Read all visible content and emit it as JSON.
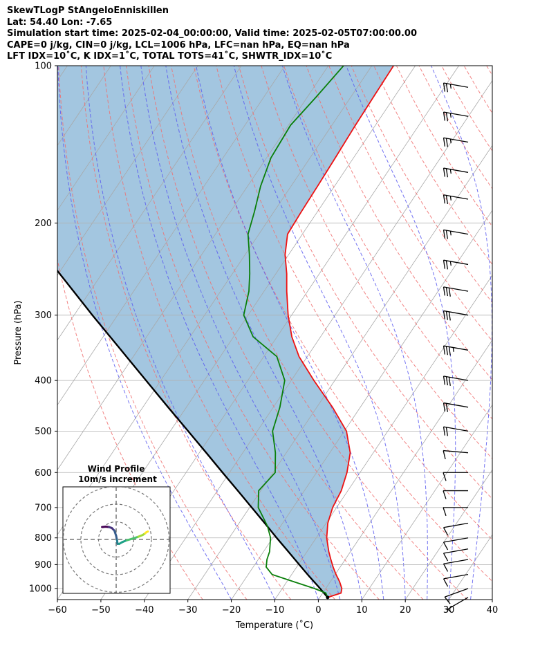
{
  "header": {
    "line1": "SkewTLogP StAngeloEnniskillen",
    "line2": "Lat: 54.40   Lon: -7.65",
    "line3": "Simulation start time: 2025-02-04_00:00:00, Valid time: 2025-02-05T07:00:00.00",
    "line4": "CAPE=0 j/kg, CIN=0 j/kg, LCL=1006 hPa, LFC=nan hPa, EQ=nan hPa",
    "line5": "LFT IDX=10˚C, K IDX=1˚C, TOTAL TOTS=41˚C, SHWTR_IDX=10˚C"
  },
  "chart_data": {
    "type": "skewt",
    "title": "SkewTLogP StAngeloEnniskillen",
    "xlabel": "Temperature (˚C)",
    "ylabel": "Pressure (hPa)",
    "xlim": [
      -60,
      40
    ],
    "ylim": [
      1050,
      100
    ],
    "x_ticks": [
      -60,
      -50,
      -40,
      -30,
      -20,
      -10,
      0,
      10,
      20,
      30,
      40
    ],
    "x_tick_labels": [
      "−60",
      "−50",
      "−40",
      "−30",
      "−20",
      "−10",
      "0",
      "10",
      "20",
      "30",
      "40"
    ],
    "y_ticks": [
      100,
      200,
      300,
      400,
      500,
      600,
      700,
      800,
      900,
      1000
    ],
    "y_tick_labels": [
      "100",
      "200",
      "300",
      "400",
      "500",
      "600",
      "700",
      "800",
      "900",
      "1000"
    ],
    "colors": {
      "temperature": "#ee1111",
      "dewpoint": "#0a7f0a",
      "parcel": "#000000",
      "shade": "#a3c6e0",
      "dry_adiabat": "#f07070",
      "moist_adiabat": "#5a5af0",
      "isotherm": "#a8a8a8",
      "grid": "#b0b0b0"
    },
    "series": [
      {
        "name": "temperature",
        "p": [
          1040,
          1020,
          1000,
          970,
          940,
          910,
          880,
          850,
          800,
          750,
          700,
          650,
          600,
          550,
          500,
          450,
          400,
          360,
          330,
          300,
          270,
          250,
          230,
          210,
          190,
          170,
          150,
          130,
          115,
          100
        ],
        "t": [
          1.8,
          4.2,
          3.7,
          2.1,
          0.2,
          -1.6,
          -3.3,
          -5.0,
          -7.6,
          -9.6,
          -10.9,
          -11.5,
          -13.0,
          -15.3,
          -19.5,
          -26.4,
          -34.8,
          -41.9,
          -46.6,
          -50.8,
          -54.8,
          -57.5,
          -60.8,
          -63.4,
          -63.7,
          -63.9,
          -64.2,
          -64.6,
          -64.8,
          -65.0
        ]
      },
      {
        "name": "dewpoint",
        "p": [
          1040,
          1020,
          1000,
          970,
          940,
          910,
          880,
          850,
          800,
          760,
          700,
          650,
          600,
          550,
          500,
          450,
          400,
          360,
          330,
          300,
          270,
          250,
          230,
          210,
          190,
          170,
          150,
          130,
          115,
          100
        ],
        "t": [
          1.8,
          0.7,
          -2.6,
          -8.5,
          -14.5,
          -17.0,
          -18.0,
          -18.6,
          -20.5,
          -23.0,
          -28.0,
          -30.5,
          -29.5,
          -32.5,
          -36.5,
          -38.5,
          -41.5,
          -47.0,
          -55.5,
          -61.0,
          -63.5,
          -66.0,
          -69.0,
          -72.5,
          -74.5,
          -77.0,
          -79.0,
          -79.5,
          -78.0,
          -76.5
        ]
      },
      {
        "name": "parcel",
        "p": [
          1040,
          1000,
          950,
          900,
          850,
          800,
          750,
          700,
          650,
          600,
          550,
          500,
          450,
          400,
          350,
          300,
          250,
          200,
          150,
          125,
          100
        ],
        "t": [
          1.8,
          -1.3,
          -5.5,
          -9.8,
          -14.3,
          -19.1,
          -24.1,
          -29.5,
          -35.3,
          -41.6,
          -48.4,
          -55.9,
          -64.2,
          -73.4,
          -83.8,
          -95.8,
          -109.7,
          -126.5,
          -147.7,
          -161.0,
          -176.8
        ]
      }
    ],
    "wind_barbs": {
      "p": [
        1040,
        1000,
        940,
        880,
        840,
        800,
        750,
        700,
        650,
        600,
        550,
        500,
        450,
        400,
        350,
        300,
        270,
        240,
        210,
        180,
        160,
        140,
        125,
        110
      ],
      "speed_kt": [
        5,
        10,
        10,
        10,
        10,
        10,
        10,
        10,
        10,
        10,
        10,
        20,
        20,
        30,
        35,
        30,
        30,
        25,
        25,
        25,
        25,
        25,
        25,
        25
      ],
      "direction_deg": [
        240,
        250,
        260,
        260,
        260,
        260,
        260,
        270,
        270,
        270,
        275,
        280,
        280,
        280,
        280,
        280,
        280,
        280,
        280,
        280,
        280,
        280,
        280,
        280
      ]
    },
    "hodograph": {
      "title": "Wind Profile",
      "subtitle": "10m/s increment",
      "ring_step_ms": 10,
      "u": [
        -8.0,
        -6.0,
        -4.0,
        -2.5,
        -1.0,
        0.0,
        0.5,
        0.8,
        1.8,
        3.5,
        6.0,
        9.5,
        12.5,
        15.0,
        16.5,
        17.0,
        18.0
      ],
      "v": [
        7.0,
        7.2,
        7.0,
        6.5,
        5.0,
        2.0,
        -0.5,
        -2.5,
        -2.5,
        -1.5,
        -0.5,
        0.5,
        1.5,
        2.5,
        3.5,
        4.0,
        4.5
      ]
    }
  }
}
